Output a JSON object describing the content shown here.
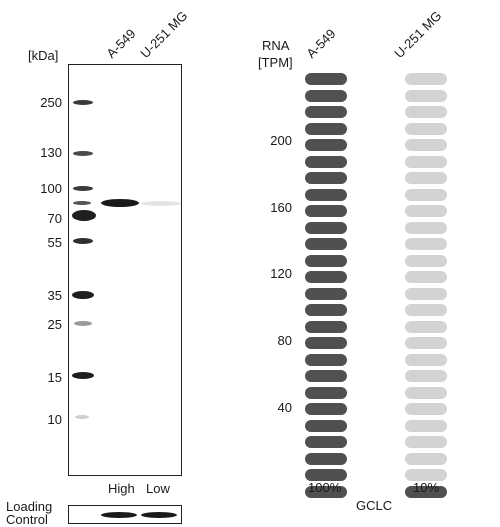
{
  "western_blot": {
    "kda_unit": "[kDa]",
    "markers": [
      "250",
      "130",
      "100",
      "70",
      "55",
      "35",
      "25",
      "15",
      "10"
    ],
    "lanes": [
      "A-549",
      "U-251 MG"
    ],
    "expression_labels": [
      "High",
      "Low"
    ],
    "loading_control_line1": "Loading",
    "loading_control_line2": "Control"
  },
  "rna": {
    "header_line1": "RNA",
    "header_line2": "[TPM]",
    "column_labels": [
      "A-549",
      "U-251 MG"
    ],
    "y_ticks": [
      "200",
      "160",
      "120",
      "80",
      "40"
    ],
    "percentages": [
      "100%",
      "10%"
    ],
    "gene": "GCLC"
  },
  "chart_data": {
    "type": "bar",
    "categories": [
      "A-549",
      "U-251 MG"
    ],
    "values": [
      100,
      10
    ],
    "unit": "%",
    "filled_segments": [
      26,
      1
    ],
    "total_segments": 26,
    "colors": {
      "filled": "#505050",
      "empty": "#d3d3d3"
    }
  }
}
